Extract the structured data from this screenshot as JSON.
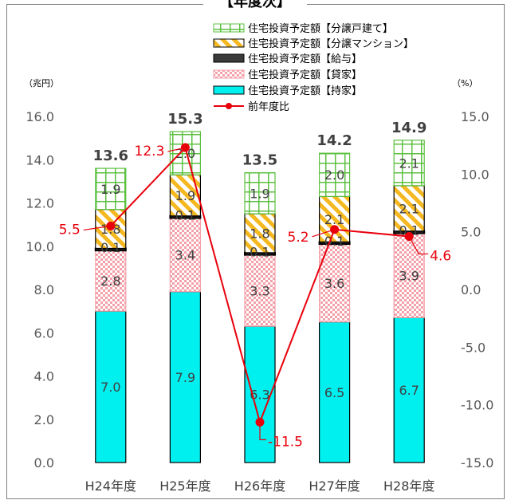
{
  "chart_data": {
    "type": "bar",
    "title": "【年度次】",
    "categories": [
      "H24年度",
      "H25年度",
      "H26年度",
      "H27年度",
      "H28年度"
    ],
    "totals": [
      "13.6",
      "15.3",
      "13.5",
      "14.2",
      "14.9"
    ],
    "y_left": {
      "unit_label": "（兆円）",
      "range": [
        0,
        16
      ],
      "ticks": [
        "0.0",
        "2.0",
        "4.0",
        "6.0",
        "8.0",
        "10.0",
        "12.0",
        "14.0",
        "16.0"
      ]
    },
    "y_right": {
      "unit_label": "（%）",
      "range": [
        -15,
        15
      ],
      "ticks": [
        "-15.0",
        "-10.0",
        "-5.0",
        "0.0",
        "5.0",
        "10.0",
        "15.0"
      ]
    },
    "series": [
      {
        "name": "住宅投資予定額【持家】",
        "kind": "bar",
        "color": "#00f0f0",
        "values": [
          7.0,
          7.9,
          6.3,
          6.5,
          6.7
        ],
        "labels": [
          "7.0",
          "7.9",
          "6.3",
          "6.5",
          "6.7"
        ]
      },
      {
        "name": "住宅投資予定額【貸家】",
        "kind": "bar",
        "color": "#f4a0a8",
        "values": [
          2.8,
          3.4,
          3.3,
          3.6,
          3.9
        ],
        "labels": [
          "2.8",
          "3.4",
          "3.3",
          "3.6",
          "3.9"
        ]
      },
      {
        "name": "住宅投資予定額【給与】",
        "kind": "bar",
        "color": "#3a3a3a",
        "values": [
          0.1,
          0.1,
          0.1,
          0.1,
          0.1
        ],
        "labels": [
          "0.1",
          "0.1",
          "0.1",
          "0.1",
          "0.1"
        ]
      },
      {
        "name": "住宅投資予定額【分譲マンション】",
        "kind": "bar",
        "color": "#f5b820",
        "values": [
          1.8,
          1.9,
          1.8,
          2.1,
          2.1
        ],
        "labels": [
          "1.8",
          "1.9",
          "1.8",
          "2.1",
          "2.1"
        ]
      },
      {
        "name": "住宅投資予定額【分譲戸建て】",
        "kind": "bar",
        "color": "#5cc040",
        "values": [
          1.9,
          2.0,
          1.9,
          2.0,
          2.1
        ],
        "labels": [
          "1.9",
          "2.0",
          "1.9",
          "2.0",
          "2.1"
        ]
      },
      {
        "name": "前年度比",
        "kind": "line",
        "axis": "right",
        "color": "#e8000b",
        "values": [
          5.5,
          12.3,
          -11.5,
          5.2,
          4.6
        ],
        "labels": [
          "5.5",
          "12.3",
          "-11.5",
          "5.2",
          "4.6"
        ]
      }
    ],
    "legend_position": "top-right",
    "grid": false
  }
}
